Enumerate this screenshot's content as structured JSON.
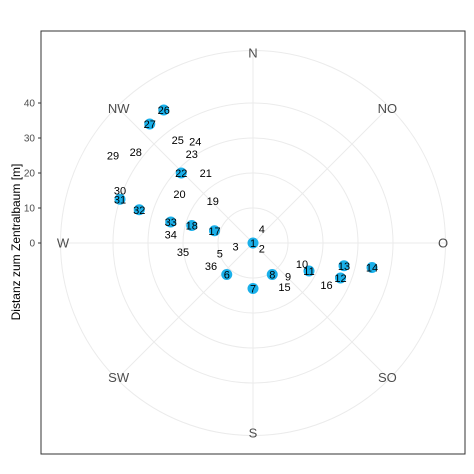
{
  "chart_data": {
    "type": "scatter",
    "coordinate_system": "polar",
    "ylabel": "Distanz zum Zentralbaum [m]",
    "radial_ticks": [
      0,
      10,
      20,
      30,
      40
    ],
    "radial_max": 55,
    "grid": true,
    "colors": {
      "point": "#1ab0ea",
      "grid": "#ebebeb",
      "panel_border": "#333333",
      "text": "#4d4d4d"
    },
    "compass_labels": [
      {
        "text": "N",
        "angle": 0
      },
      {
        "text": "NO",
        "angle": 45
      },
      {
        "text": "O",
        "angle": 90
      },
      {
        "text": "SO",
        "angle": 135
      },
      {
        "text": "S",
        "angle": 180
      },
      {
        "text": "SW",
        "angle": 225
      },
      {
        "text": "W",
        "angle": 270
      },
      {
        "text": "NW",
        "angle": 315
      }
    ],
    "points": [
      {
        "id": "1",
        "x": 0,
        "y": 0,
        "marker": true
      },
      {
        "id": "2",
        "x": 2.5,
        "y": -1.5,
        "marker": false
      },
      {
        "id": "3",
        "x": -5,
        "y": -1,
        "marker": false
      },
      {
        "id": "4",
        "x": 2.5,
        "y": 4,
        "marker": false
      },
      {
        "id": "5",
        "x": -9.5,
        "y": -3,
        "marker": false
      },
      {
        "id": "6",
        "x": -7.5,
        "y": -9,
        "marker": true
      },
      {
        "id": "7",
        "x": 0,
        "y": -13,
        "marker": true
      },
      {
        "id": "8",
        "x": 5.5,
        "y": -9,
        "marker": true
      },
      {
        "id": "9",
        "x": 10,
        "y": -9.5,
        "marker": false
      },
      {
        "id": "10",
        "x": 14,
        "y": -6,
        "marker": false
      },
      {
        "id": "11",
        "x": 16,
        "y": -8,
        "marker": true
      },
      {
        "id": "12",
        "x": 25,
        "y": -10,
        "marker": true
      },
      {
        "id": "13",
        "x": 26,
        "y": -6.5,
        "marker": true
      },
      {
        "id": "14",
        "x": 34,
        "y": -7,
        "marker": true
      },
      {
        "id": "15",
        "x": 9,
        "y": -12.5,
        "marker": false
      },
      {
        "id": "16",
        "x": 21,
        "y": -12,
        "marker": false
      },
      {
        "id": "17",
        "x": -11,
        "y": 3.5,
        "marker": true
      },
      {
        "id": "18",
        "x": -17.5,
        "y": 5,
        "marker": true
      },
      {
        "id": "19",
        "x": -11.5,
        "y": 12,
        "marker": false
      },
      {
        "id": "20",
        "x": -21,
        "y": 14,
        "marker": false
      },
      {
        "id": "21",
        "x": -13.5,
        "y": 20,
        "marker": false
      },
      {
        "id": "22",
        "x": -20.5,
        "y": 20,
        "marker": true
      },
      {
        "id": "23",
        "x": -17.5,
        "y": 25.5,
        "marker": false
      },
      {
        "id": "24",
        "x": -16.5,
        "y": 29,
        "marker": false
      },
      {
        "id": "25",
        "x": -21.5,
        "y": 29.5,
        "marker": false
      },
      {
        "id": "26",
        "x": -25.5,
        "y": 38,
        "marker": true
      },
      {
        "id": "27",
        "x": -29.5,
        "y": 34,
        "marker": true
      },
      {
        "id": "28",
        "x": -33.5,
        "y": 26,
        "marker": false
      },
      {
        "id": "29",
        "x": -40,
        "y": 25,
        "marker": false
      },
      {
        "id": "30",
        "x": -38,
        "y": 15,
        "marker": false
      },
      {
        "id": "31",
        "x": -38,
        "y": 12.5,
        "marker": true
      },
      {
        "id": "32",
        "x": -32.5,
        "y": 9.5,
        "marker": true
      },
      {
        "id": "33",
        "x": -23.5,
        "y": 6,
        "marker": true
      },
      {
        "id": "34",
        "x": -23.5,
        "y": 2.5,
        "marker": false
      },
      {
        "id": "35",
        "x": -20,
        "y": -2.5,
        "marker": false
      },
      {
        "id": "36",
        "x": -12,
        "y": -6.5,
        "marker": false
      }
    ]
  }
}
